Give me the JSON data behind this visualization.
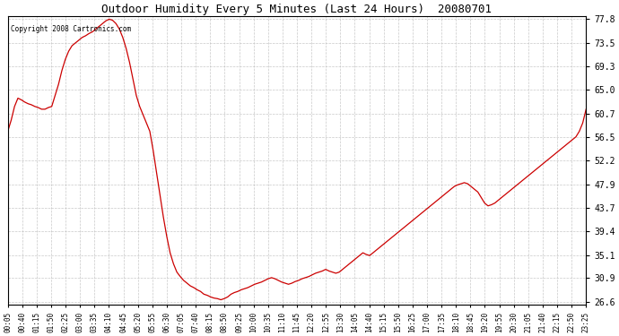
{
  "title": "Outdoor Humidity Every 5 Minutes (Last 24 Hours)  20080701",
  "copyright": "Copyright 2008 Cartronics.com",
  "yticks": [
    26.6,
    30.9,
    35.1,
    39.4,
    43.7,
    47.9,
    52.2,
    56.5,
    60.7,
    65.0,
    69.3,
    73.5,
    77.8
  ],
  "line_color": "#cc0000",
  "background_color": "#ffffff",
  "grid_color": "#bbbbbb",
  "xtick_labels": [
    "00:05",
    "00:40",
    "01:15",
    "01:50",
    "02:25",
    "03:00",
    "03:35",
    "04:10",
    "04:45",
    "05:20",
    "05:55",
    "06:30",
    "07:05",
    "07:40",
    "08:15",
    "08:50",
    "09:25",
    "10:00",
    "10:35",
    "11:10",
    "11:45",
    "12:20",
    "12:55",
    "13:30",
    "14:05",
    "14:40",
    "15:15",
    "15:50",
    "16:25",
    "17:00",
    "17:35",
    "18:10",
    "18:45",
    "19:20",
    "19:55",
    "20:30",
    "21:05",
    "21:40",
    "22:15",
    "22:50",
    "23:25"
  ],
  "humidity_values": [
    57.5,
    59.5,
    62.0,
    63.5,
    63.2,
    62.8,
    62.5,
    62.3,
    62.0,
    61.8,
    61.5,
    61.5,
    61.8,
    62.0,
    64.0,
    66.0,
    68.5,
    70.5,
    72.0,
    73.0,
    73.5,
    74.0,
    74.5,
    74.8,
    75.2,
    75.5,
    76.0,
    76.5,
    77.0,
    77.5,
    77.8,
    77.6,
    77.0,
    76.0,
    74.5,
    72.5,
    70.0,
    67.0,
    64.0,
    62.0,
    60.5,
    59.0,
    57.5,
    54.0,
    50.0,
    46.0,
    42.0,
    38.5,
    35.5,
    33.5,
    32.0,
    31.2,
    30.5,
    30.0,
    29.5,
    29.2,
    28.8,
    28.5,
    28.0,
    27.8,
    27.5,
    27.3,
    27.2,
    27.0,
    27.2,
    27.5,
    28.0,
    28.3,
    28.5,
    28.8,
    29.0,
    29.2,
    29.5,
    29.8,
    30.0,
    30.2,
    30.5,
    30.8,
    31.0,
    30.8,
    30.5,
    30.2,
    30.0,
    29.8,
    30.0,
    30.3,
    30.5,
    30.8,
    31.0,
    31.2,
    31.5,
    31.8,
    32.0,
    32.2,
    32.5,
    32.2,
    32.0,
    31.8,
    32.0,
    32.5,
    33.0,
    33.5,
    34.0,
    34.5,
    35.0,
    35.5,
    35.2,
    35.0,
    35.5,
    36.0,
    36.5,
    37.0,
    37.5,
    38.0,
    38.5,
    39.0,
    39.5,
    40.0,
    40.5,
    41.0,
    41.5,
    42.0,
    42.5,
    43.0,
    43.5,
    44.0,
    44.5,
    45.0,
    45.5,
    46.0,
    46.5,
    47.0,
    47.5,
    47.8,
    48.0,
    48.2,
    48.0,
    47.5,
    47.0,
    46.5,
    45.5,
    44.5,
    44.0,
    44.2,
    44.5,
    45.0,
    45.5,
    46.0,
    46.5,
    47.0,
    47.5,
    48.0,
    48.5,
    49.0,
    49.5,
    50.0,
    50.5,
    51.0,
    51.5,
    52.0,
    52.5,
    53.0,
    53.5,
    54.0,
    54.5,
    55.0,
    55.5,
    56.0,
    56.5,
    57.5,
    59.0,
    61.5
  ]
}
